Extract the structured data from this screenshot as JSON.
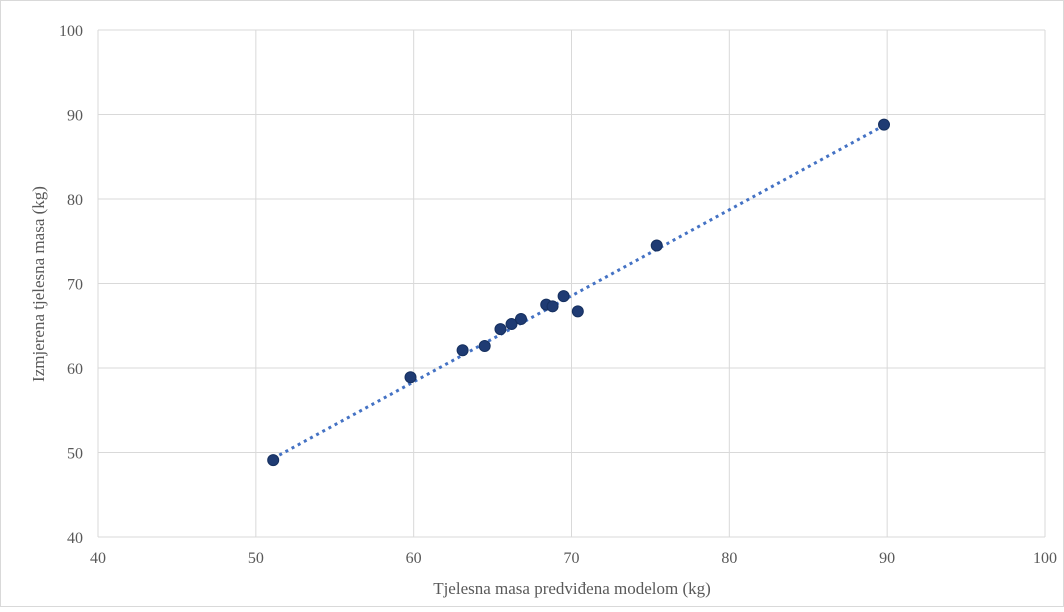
{
  "chart_data": {
    "type": "scatter",
    "title": "",
    "xlabel": "Tjelesna masa predviđena modelom (kg)",
    "ylabel": "Izmjerena tjelesna masa (kg)",
    "xlim": [
      40,
      100
    ],
    "ylim": [
      40,
      100
    ],
    "xticks": [
      "40",
      "50",
      "60",
      "70",
      "80",
      "90",
      "100"
    ],
    "yticks": [
      "40",
      "50",
      "60",
      "70",
      "80",
      "90",
      "100"
    ],
    "grid": true,
    "legend": "none",
    "colors": {
      "marker": "#1f3b73",
      "trendline": "#4472c4",
      "grid": "#d9d9d9",
      "text": "#595959",
      "border": "#d9d9d9"
    },
    "series": [
      {
        "points": [
          {
            "x": 51.1,
            "y": 49.1
          },
          {
            "x": 59.8,
            "y": 58.9
          },
          {
            "x": 63.1,
            "y": 62.1
          },
          {
            "x": 64.5,
            "y": 62.6
          },
          {
            "x": 65.5,
            "y": 64.6
          },
          {
            "x": 66.2,
            "y": 65.2
          },
          {
            "x": 66.8,
            "y": 65.8
          },
          {
            "x": 68.4,
            "y": 67.5
          },
          {
            "x": 68.8,
            "y": 67.3
          },
          {
            "x": 69.5,
            "y": 68.5
          },
          {
            "x": 70.4,
            "y": 66.7
          },
          {
            "x": 75.4,
            "y": 74.5
          },
          {
            "x": 89.8,
            "y": 88.8
          }
        ]
      }
    ],
    "trendline": {
      "type": "linear",
      "style": "dotted",
      "x_start": 51.1,
      "y_start": 49.3,
      "x_end": 89.8,
      "y_end": 88.7
    }
  }
}
